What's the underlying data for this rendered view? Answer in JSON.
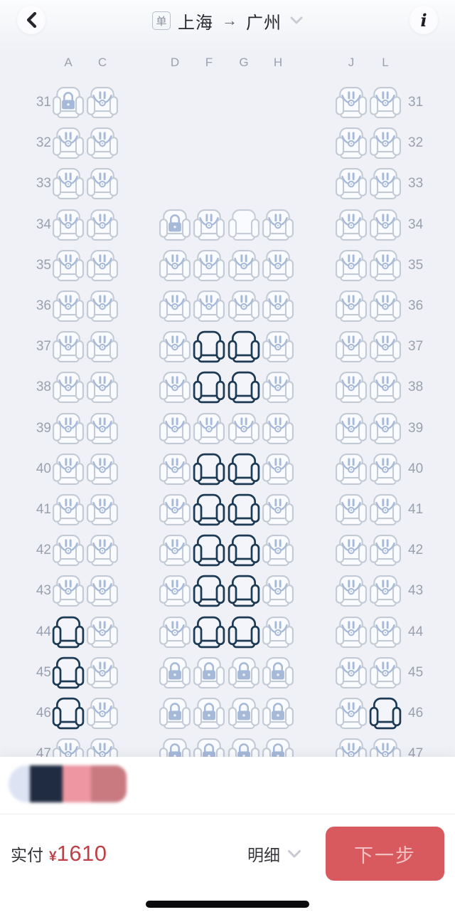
{
  "header": {
    "trip_type_badge": "单",
    "origin": "上海",
    "route_arrow": "→",
    "destination": "广州",
    "info_glyph": "i"
  },
  "seat_map": {
    "columns": [
      "A",
      "C",
      "D",
      "F",
      "G",
      "H",
      "J",
      "L"
    ],
    "rows": [
      {
        "num": "31",
        "seats": {
          "A": "locked",
          "C": "occupied",
          "J": "occupied",
          "L": "occupied"
        }
      },
      {
        "num": "32",
        "seats": {
          "A": "occupied",
          "C": "occupied",
          "J": "occupied",
          "L": "occupied"
        }
      },
      {
        "num": "33",
        "seats": {
          "A": "occupied",
          "C": "occupied",
          "J": "occupied",
          "L": "occupied"
        }
      },
      {
        "num": "34",
        "seats": {
          "A": "occupied",
          "C": "occupied",
          "D": "locked",
          "F": "occupied",
          "G": "open",
          "H": "occupied",
          "J": "occupied",
          "L": "occupied"
        }
      },
      {
        "num": "35",
        "seats": {
          "A": "occupied",
          "C": "occupied",
          "D": "occupied",
          "F": "occupied",
          "G": "occupied",
          "H": "occupied",
          "J": "occupied",
          "L": "occupied"
        }
      },
      {
        "num": "36",
        "seats": {
          "A": "occupied",
          "C": "occupied",
          "D": "occupied",
          "F": "occupied",
          "G": "occupied",
          "H": "occupied",
          "J": "occupied",
          "L": "occupied"
        }
      },
      {
        "num": "37",
        "seats": {
          "A": "occupied",
          "C": "occupied",
          "D": "occupied",
          "F": "available",
          "G": "available",
          "H": "occupied",
          "J": "occupied",
          "L": "occupied"
        }
      },
      {
        "num": "38",
        "seats": {
          "A": "occupied",
          "C": "occupied",
          "D": "occupied",
          "F": "available",
          "G": "available",
          "H": "occupied",
          "J": "occupied",
          "L": "occupied"
        }
      },
      {
        "num": "39",
        "seats": {
          "A": "occupied",
          "C": "occupied",
          "D": "occupied",
          "F": "occupied",
          "G": "occupied",
          "H": "occupied",
          "J": "occupied",
          "L": "occupied"
        }
      },
      {
        "num": "40",
        "seats": {
          "A": "occupied",
          "C": "occupied",
          "D": "occupied",
          "F": "available",
          "G": "available",
          "H": "occupied",
          "J": "occupied",
          "L": "occupied"
        }
      },
      {
        "num": "41",
        "seats": {
          "A": "occupied",
          "C": "occupied",
          "D": "occupied",
          "F": "available",
          "G": "available",
          "H": "occupied",
          "J": "occupied",
          "L": "occupied"
        }
      },
      {
        "num": "42",
        "seats": {
          "A": "occupied",
          "C": "occupied",
          "D": "occupied",
          "F": "available",
          "G": "available",
          "H": "occupied",
          "J": "occupied",
          "L": "occupied"
        }
      },
      {
        "num": "43",
        "seats": {
          "A": "occupied",
          "C": "occupied",
          "D": "occupied",
          "F": "available",
          "G": "available",
          "H": "occupied",
          "J": "occupied",
          "L": "occupied"
        }
      },
      {
        "num": "44",
        "seats": {
          "A": "available",
          "C": "occupied",
          "D": "occupied",
          "F": "available",
          "G": "available",
          "H": "occupied",
          "J": "occupied",
          "L": "occupied"
        }
      },
      {
        "num": "45",
        "seats": {
          "A": "available",
          "C": "occupied",
          "D": "locked",
          "F": "locked",
          "G": "locked",
          "H": "locked",
          "J": "occupied",
          "L": "occupied"
        }
      },
      {
        "num": "46",
        "seats": {
          "A": "available",
          "C": "occupied",
          "D": "locked",
          "F": "locked",
          "G": "locked",
          "H": "locked",
          "J": "occupied",
          "L": "available"
        }
      },
      {
        "num": "47",
        "seats": {
          "A": "occupied",
          "C": "occupied",
          "D": "locked",
          "F": "locked",
          "G": "locked",
          "H": "locked",
          "J": "occupied",
          "L": "occupied"
        }
      }
    ],
    "colors": {
      "seat_outline": "#c2cad6",
      "seat_fill": "#fafbfe",
      "glyph_blue": "#a6b9d9",
      "available_outline": "#1d3a55",
      "available_fill": "#f3f5fa",
      "open_outline": "#c6cdd9"
    }
  },
  "legend_swatches": {
    "colors": [
      "#dde3f3",
      "#202c41",
      "#ee96a1",
      "#c87a80"
    ],
    "widths": [
      30,
      46,
      40,
      50
    ]
  },
  "footer": {
    "paid_label": "实付",
    "currency": "¥",
    "amount": "1610",
    "price_color": "#bf4046",
    "detail_label": "明细",
    "next_label": "下一步",
    "accent": "#d85a5f"
  }
}
